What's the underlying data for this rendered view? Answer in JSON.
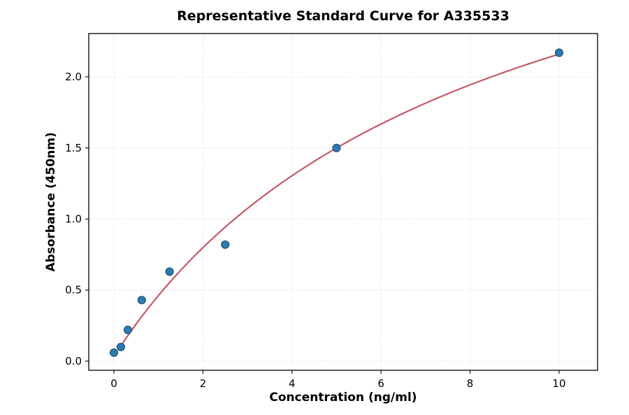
{
  "figure": {
    "background": "#ffffff"
  },
  "chart_data": {
    "type": "scatter",
    "title": "Representative Standard Curve for A335533",
    "xlabel": "Concentration (ng/ml)",
    "ylabel": "Absorbance (450nm)",
    "points": {
      "x": [
        0,
        0.156,
        0.3125,
        0.625,
        1.25,
        2.5,
        5,
        10
      ],
      "y": [
        0.06,
        0.1,
        0.22,
        0.43,
        0.63,
        0.82,
        1.5,
        2.17
      ]
    },
    "fit_curve": {
      "model": "4PL",
      "params": {
        "a": 0.03,
        "b": 0.977,
        "c": 8.61,
        "d": 4.0
      },
      "x_start": 0.12,
      "x_end": 10
    },
    "xlim": [
      -0.565,
      10.864
    ],
    "ylim": [
      -0.064,
      2.305
    ],
    "x_ticks": [
      0,
      2,
      4,
      6,
      8,
      10
    ],
    "x_tick_labels": [
      "0",
      "2",
      "4",
      "6",
      "8",
      "10"
    ],
    "y_ticks": [
      0.0,
      0.5,
      1.0,
      1.5,
      2.0
    ],
    "y_tick_labels": [
      "0.0",
      "0.5",
      "1.0",
      "1.5",
      "2.0"
    ],
    "grid": true,
    "legend": null,
    "colors": {
      "marker_fill": "#2e7ab0",
      "marker_edge": "#1c4e6e",
      "curve": "#c25b66",
      "grid": "#cccccc",
      "axis": "#000000",
      "text": "#000000"
    }
  }
}
